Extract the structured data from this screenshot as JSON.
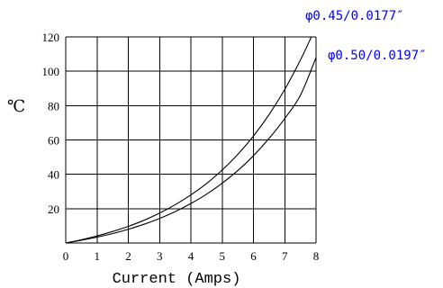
{
  "chart_data": {
    "type": "line",
    "xlabel": "Current (Amps)",
    "ylabel": "℃",
    "xlim": [
      0,
      8
    ],
    "ylim": [
      0,
      120
    ],
    "x_ticks": [
      "0",
      "1",
      "2",
      "3",
      "4",
      "5",
      "6",
      "7",
      "8"
    ],
    "y_ticks": [
      "20",
      "40",
      "60",
      "80",
      "100",
      "120"
    ],
    "grid": true,
    "legend": "top-right",
    "label_color": "#0000ff",
    "series": [
      {
        "name": "φ0.45/0.0177″",
        "x": [
          0,
          0.5,
          1,
          1.5,
          2,
          2.5,
          3,
          3.5,
          4,
          4.5,
          5,
          5.5,
          6,
          6.5,
          7,
          7.5,
          7.85
        ],
        "y": [
          0,
          1.9,
          4.1,
          6.7,
          9.7,
          13.2,
          17.4,
          22.3,
          28.0,
          34.6,
          42.5,
          51.6,
          62.3,
          74.8,
          89.4,
          106.5,
          120
        ]
      },
      {
        "name": "φ0.50/0.0197″",
        "x": [
          0,
          0.5,
          1,
          1.5,
          2,
          2.5,
          3,
          3.5,
          4,
          4.5,
          5,
          5.5,
          6,
          6.5,
          7,
          7.5,
          8
        ],
        "y": [
          0,
          1.6,
          3.4,
          5.5,
          8.0,
          10.9,
          14.3,
          18.3,
          23.0,
          28.4,
          34.8,
          42.2,
          50.8,
          60.9,
          72.5,
          86.0,
          108
        ]
      }
    ]
  }
}
